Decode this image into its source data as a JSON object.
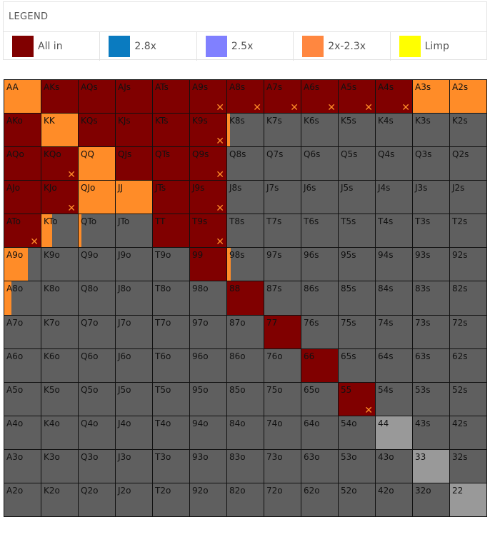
{
  "legend": {
    "title": "LEGEND",
    "items": [
      {
        "key": "allin",
        "label": "All in",
        "color": "#800000"
      },
      {
        "key": "r28",
        "label": "2.8x",
        "color": "#0a7bc0"
      },
      {
        "key": "r25",
        "label": "2.5x",
        "color": "#8080ff"
      },
      {
        "key": "r2x",
        "label": "2x-2.3x",
        "color": "#ff8740"
      },
      {
        "key": "limp",
        "label": "Limp",
        "color": "#ffff00"
      }
    ]
  },
  "colors": {
    "allin": "#800000",
    "open": "#ff8c28",
    "fold": "#5f5f5f",
    "light": "#999999",
    "mark": "#ff8c28"
  },
  "mark_glyph": "✕",
  "grid": [
    [
      {
        "label": "AA",
        "base": "open"
      },
      {
        "label": "AKs",
        "base": "allin"
      },
      {
        "label": "AQs",
        "base": "allin"
      },
      {
        "label": "AJs",
        "base": "allin"
      },
      {
        "label": "ATs",
        "base": "allin"
      },
      {
        "label": "A9s",
        "base": "allin",
        "mark": true
      },
      {
        "label": "A8s",
        "base": "allin",
        "mark": true
      },
      {
        "label": "A7s",
        "base": "allin",
        "mark": true
      },
      {
        "label": "A6s",
        "base": "allin",
        "mark": true
      },
      {
        "label": "A5s",
        "base": "allin",
        "mark": true
      },
      {
        "label": "A4s",
        "base": "allin",
        "mark": true
      },
      {
        "label": "A3s",
        "base": "open"
      },
      {
        "label": "A2s",
        "base": "open"
      }
    ],
    [
      {
        "label": "AKo",
        "base": "allin"
      },
      {
        "label": "KK",
        "base": "open"
      },
      {
        "label": "KQs",
        "base": "allin"
      },
      {
        "label": "KJs",
        "base": "allin"
      },
      {
        "label": "KTs",
        "base": "allin"
      },
      {
        "label": "K9s",
        "base": "allin",
        "mark": true
      },
      {
        "label": "K8s",
        "base": "fold",
        "fill": "open",
        "frac": 0.08
      },
      {
        "label": "K7s",
        "base": "fold"
      },
      {
        "label": "K6s",
        "base": "fold"
      },
      {
        "label": "K5s",
        "base": "fold"
      },
      {
        "label": "K4s",
        "base": "fold"
      },
      {
        "label": "K3s",
        "base": "fold"
      },
      {
        "label": "K2s",
        "base": "fold"
      }
    ],
    [
      {
        "label": "AQo",
        "base": "allin"
      },
      {
        "label": "KQo",
        "base": "allin",
        "mark": true
      },
      {
        "label": "QQ",
        "base": "open"
      },
      {
        "label": "QJs",
        "base": "allin"
      },
      {
        "label": "QTs",
        "base": "allin"
      },
      {
        "label": "Q9s",
        "base": "allin",
        "mark": true
      },
      {
        "label": "Q8s",
        "base": "fold"
      },
      {
        "label": "Q7s",
        "base": "fold"
      },
      {
        "label": "Q6s",
        "base": "fold"
      },
      {
        "label": "Q5s",
        "base": "fold"
      },
      {
        "label": "Q4s",
        "base": "fold"
      },
      {
        "label": "Q3s",
        "base": "fold"
      },
      {
        "label": "Q2s",
        "base": "fold"
      }
    ],
    [
      {
        "label": "AJo",
        "base": "allin"
      },
      {
        "label": "KJo",
        "base": "allin",
        "mark": true
      },
      {
        "label": "QJo",
        "base": "open"
      },
      {
        "label": "JJ",
        "base": "open"
      },
      {
        "label": "JTs",
        "base": "allin"
      },
      {
        "label": "J9s",
        "base": "allin",
        "mark": true
      },
      {
        "label": "J8s",
        "base": "fold"
      },
      {
        "label": "J7s",
        "base": "fold"
      },
      {
        "label": "J6s",
        "base": "fold"
      },
      {
        "label": "J5s",
        "base": "fold"
      },
      {
        "label": "J4s",
        "base": "fold"
      },
      {
        "label": "J3s",
        "base": "fold"
      },
      {
        "label": "J2s",
        "base": "fold"
      }
    ],
    [
      {
        "label": "ATo",
        "base": "allin",
        "mark": true
      },
      {
        "label": "KTo",
        "base": "fold",
        "fill": "open",
        "frac": 0.3
      },
      {
        "label": "QTo",
        "base": "fold",
        "fill": "open",
        "frac": 0.08
      },
      {
        "label": "JTo",
        "base": "fold"
      },
      {
        "label": "TT",
        "base": "allin"
      },
      {
        "label": "T9s",
        "base": "allin",
        "mark": true
      },
      {
        "label": "T8s",
        "base": "fold"
      },
      {
        "label": "T7s",
        "base": "fold"
      },
      {
        "label": "T6s",
        "base": "fold"
      },
      {
        "label": "T5s",
        "base": "fold"
      },
      {
        "label": "T4s",
        "base": "fold"
      },
      {
        "label": "T3s",
        "base": "fold"
      },
      {
        "label": "T2s",
        "base": "fold"
      }
    ],
    [
      {
        "label": "A9o",
        "base": "fold",
        "fill": "open",
        "frac": 0.65
      },
      {
        "label": "K9o",
        "base": "fold"
      },
      {
        "label": "Q9o",
        "base": "fold"
      },
      {
        "label": "J9o",
        "base": "fold"
      },
      {
        "label": "T9o",
        "base": "fold"
      },
      {
        "label": "99",
        "base": "allin"
      },
      {
        "label": "98s",
        "base": "fold",
        "fill": "open",
        "frac": 0.1
      },
      {
        "label": "97s",
        "base": "fold"
      },
      {
        "label": "96s",
        "base": "fold"
      },
      {
        "label": "95s",
        "base": "fold"
      },
      {
        "label": "94s",
        "base": "fold"
      },
      {
        "label": "93s",
        "base": "fold"
      },
      {
        "label": "92s",
        "base": "fold"
      }
    ],
    [
      {
        "label": "A8o",
        "base": "fold",
        "fill": "open",
        "frac": 0.2
      },
      {
        "label": "K8o",
        "base": "fold"
      },
      {
        "label": "Q8o",
        "base": "fold"
      },
      {
        "label": "J8o",
        "base": "fold"
      },
      {
        "label": "T8o",
        "base": "fold"
      },
      {
        "label": "98o",
        "base": "fold"
      },
      {
        "label": "88",
        "base": "allin"
      },
      {
        "label": "87s",
        "base": "fold"
      },
      {
        "label": "86s",
        "base": "fold"
      },
      {
        "label": "85s",
        "base": "fold"
      },
      {
        "label": "84s",
        "base": "fold"
      },
      {
        "label": "83s",
        "base": "fold"
      },
      {
        "label": "82s",
        "base": "fold"
      }
    ],
    [
      {
        "label": "A7o",
        "base": "fold"
      },
      {
        "label": "K7o",
        "base": "fold"
      },
      {
        "label": "Q7o",
        "base": "fold"
      },
      {
        "label": "J7o",
        "base": "fold"
      },
      {
        "label": "T7o",
        "base": "fold"
      },
      {
        "label": "97o",
        "base": "fold"
      },
      {
        "label": "87o",
        "base": "fold"
      },
      {
        "label": "77",
        "base": "allin"
      },
      {
        "label": "76s",
        "base": "fold"
      },
      {
        "label": "75s",
        "base": "fold"
      },
      {
        "label": "74s",
        "base": "fold"
      },
      {
        "label": "73s",
        "base": "fold"
      },
      {
        "label": "72s",
        "base": "fold"
      }
    ],
    [
      {
        "label": "A6o",
        "base": "fold"
      },
      {
        "label": "K6o",
        "base": "fold"
      },
      {
        "label": "Q6o",
        "base": "fold"
      },
      {
        "label": "J6o",
        "base": "fold"
      },
      {
        "label": "T6o",
        "base": "fold"
      },
      {
        "label": "96o",
        "base": "fold"
      },
      {
        "label": "86o",
        "base": "fold"
      },
      {
        "label": "76o",
        "base": "fold"
      },
      {
        "label": "66",
        "base": "allin"
      },
      {
        "label": "65s",
        "base": "fold"
      },
      {
        "label": "64s",
        "base": "fold"
      },
      {
        "label": "63s",
        "base": "fold"
      },
      {
        "label": "62s",
        "base": "fold"
      }
    ],
    [
      {
        "label": "A5o",
        "base": "fold"
      },
      {
        "label": "K5o",
        "base": "fold"
      },
      {
        "label": "Q5o",
        "base": "fold"
      },
      {
        "label": "J5o",
        "base": "fold"
      },
      {
        "label": "T5o",
        "base": "fold"
      },
      {
        "label": "95o",
        "base": "fold"
      },
      {
        "label": "85o",
        "base": "fold"
      },
      {
        "label": "75o",
        "base": "fold"
      },
      {
        "label": "65o",
        "base": "fold"
      },
      {
        "label": "55",
        "base": "allin",
        "mark": true
      },
      {
        "label": "54s",
        "base": "fold"
      },
      {
        "label": "53s",
        "base": "fold"
      },
      {
        "label": "52s",
        "base": "fold"
      }
    ],
    [
      {
        "label": "A4o",
        "base": "fold"
      },
      {
        "label": "K4o",
        "base": "fold"
      },
      {
        "label": "Q4o",
        "base": "fold"
      },
      {
        "label": "J4o",
        "base": "fold"
      },
      {
        "label": "T4o",
        "base": "fold"
      },
      {
        "label": "94o",
        "base": "fold"
      },
      {
        "label": "84o",
        "base": "fold"
      },
      {
        "label": "74o",
        "base": "fold"
      },
      {
        "label": "64o",
        "base": "fold"
      },
      {
        "label": "54o",
        "base": "fold"
      },
      {
        "label": "44",
        "base": "light"
      },
      {
        "label": "43s",
        "base": "fold"
      },
      {
        "label": "42s",
        "base": "fold"
      }
    ],
    [
      {
        "label": "A3o",
        "base": "fold"
      },
      {
        "label": "K3o",
        "base": "fold"
      },
      {
        "label": "Q3o",
        "base": "fold"
      },
      {
        "label": "J3o",
        "base": "fold"
      },
      {
        "label": "T3o",
        "base": "fold"
      },
      {
        "label": "93o",
        "base": "fold"
      },
      {
        "label": "83o",
        "base": "fold"
      },
      {
        "label": "73o",
        "base": "fold"
      },
      {
        "label": "63o",
        "base": "fold"
      },
      {
        "label": "53o",
        "base": "fold"
      },
      {
        "label": "43o",
        "base": "fold"
      },
      {
        "label": "33",
        "base": "light"
      },
      {
        "label": "32s",
        "base": "fold"
      }
    ],
    [
      {
        "label": "A2o",
        "base": "fold"
      },
      {
        "label": "K2o",
        "base": "fold"
      },
      {
        "label": "Q2o",
        "base": "fold"
      },
      {
        "label": "J2o",
        "base": "fold"
      },
      {
        "label": "T2o",
        "base": "fold"
      },
      {
        "label": "92o",
        "base": "fold"
      },
      {
        "label": "82o",
        "base": "fold"
      },
      {
        "label": "72o",
        "base": "fold"
      },
      {
        "label": "62o",
        "base": "fold"
      },
      {
        "label": "52o",
        "base": "fold"
      },
      {
        "label": "42o",
        "base": "fold"
      },
      {
        "label": "32o",
        "base": "fold"
      },
      {
        "label": "22",
        "base": "light"
      }
    ]
  ]
}
